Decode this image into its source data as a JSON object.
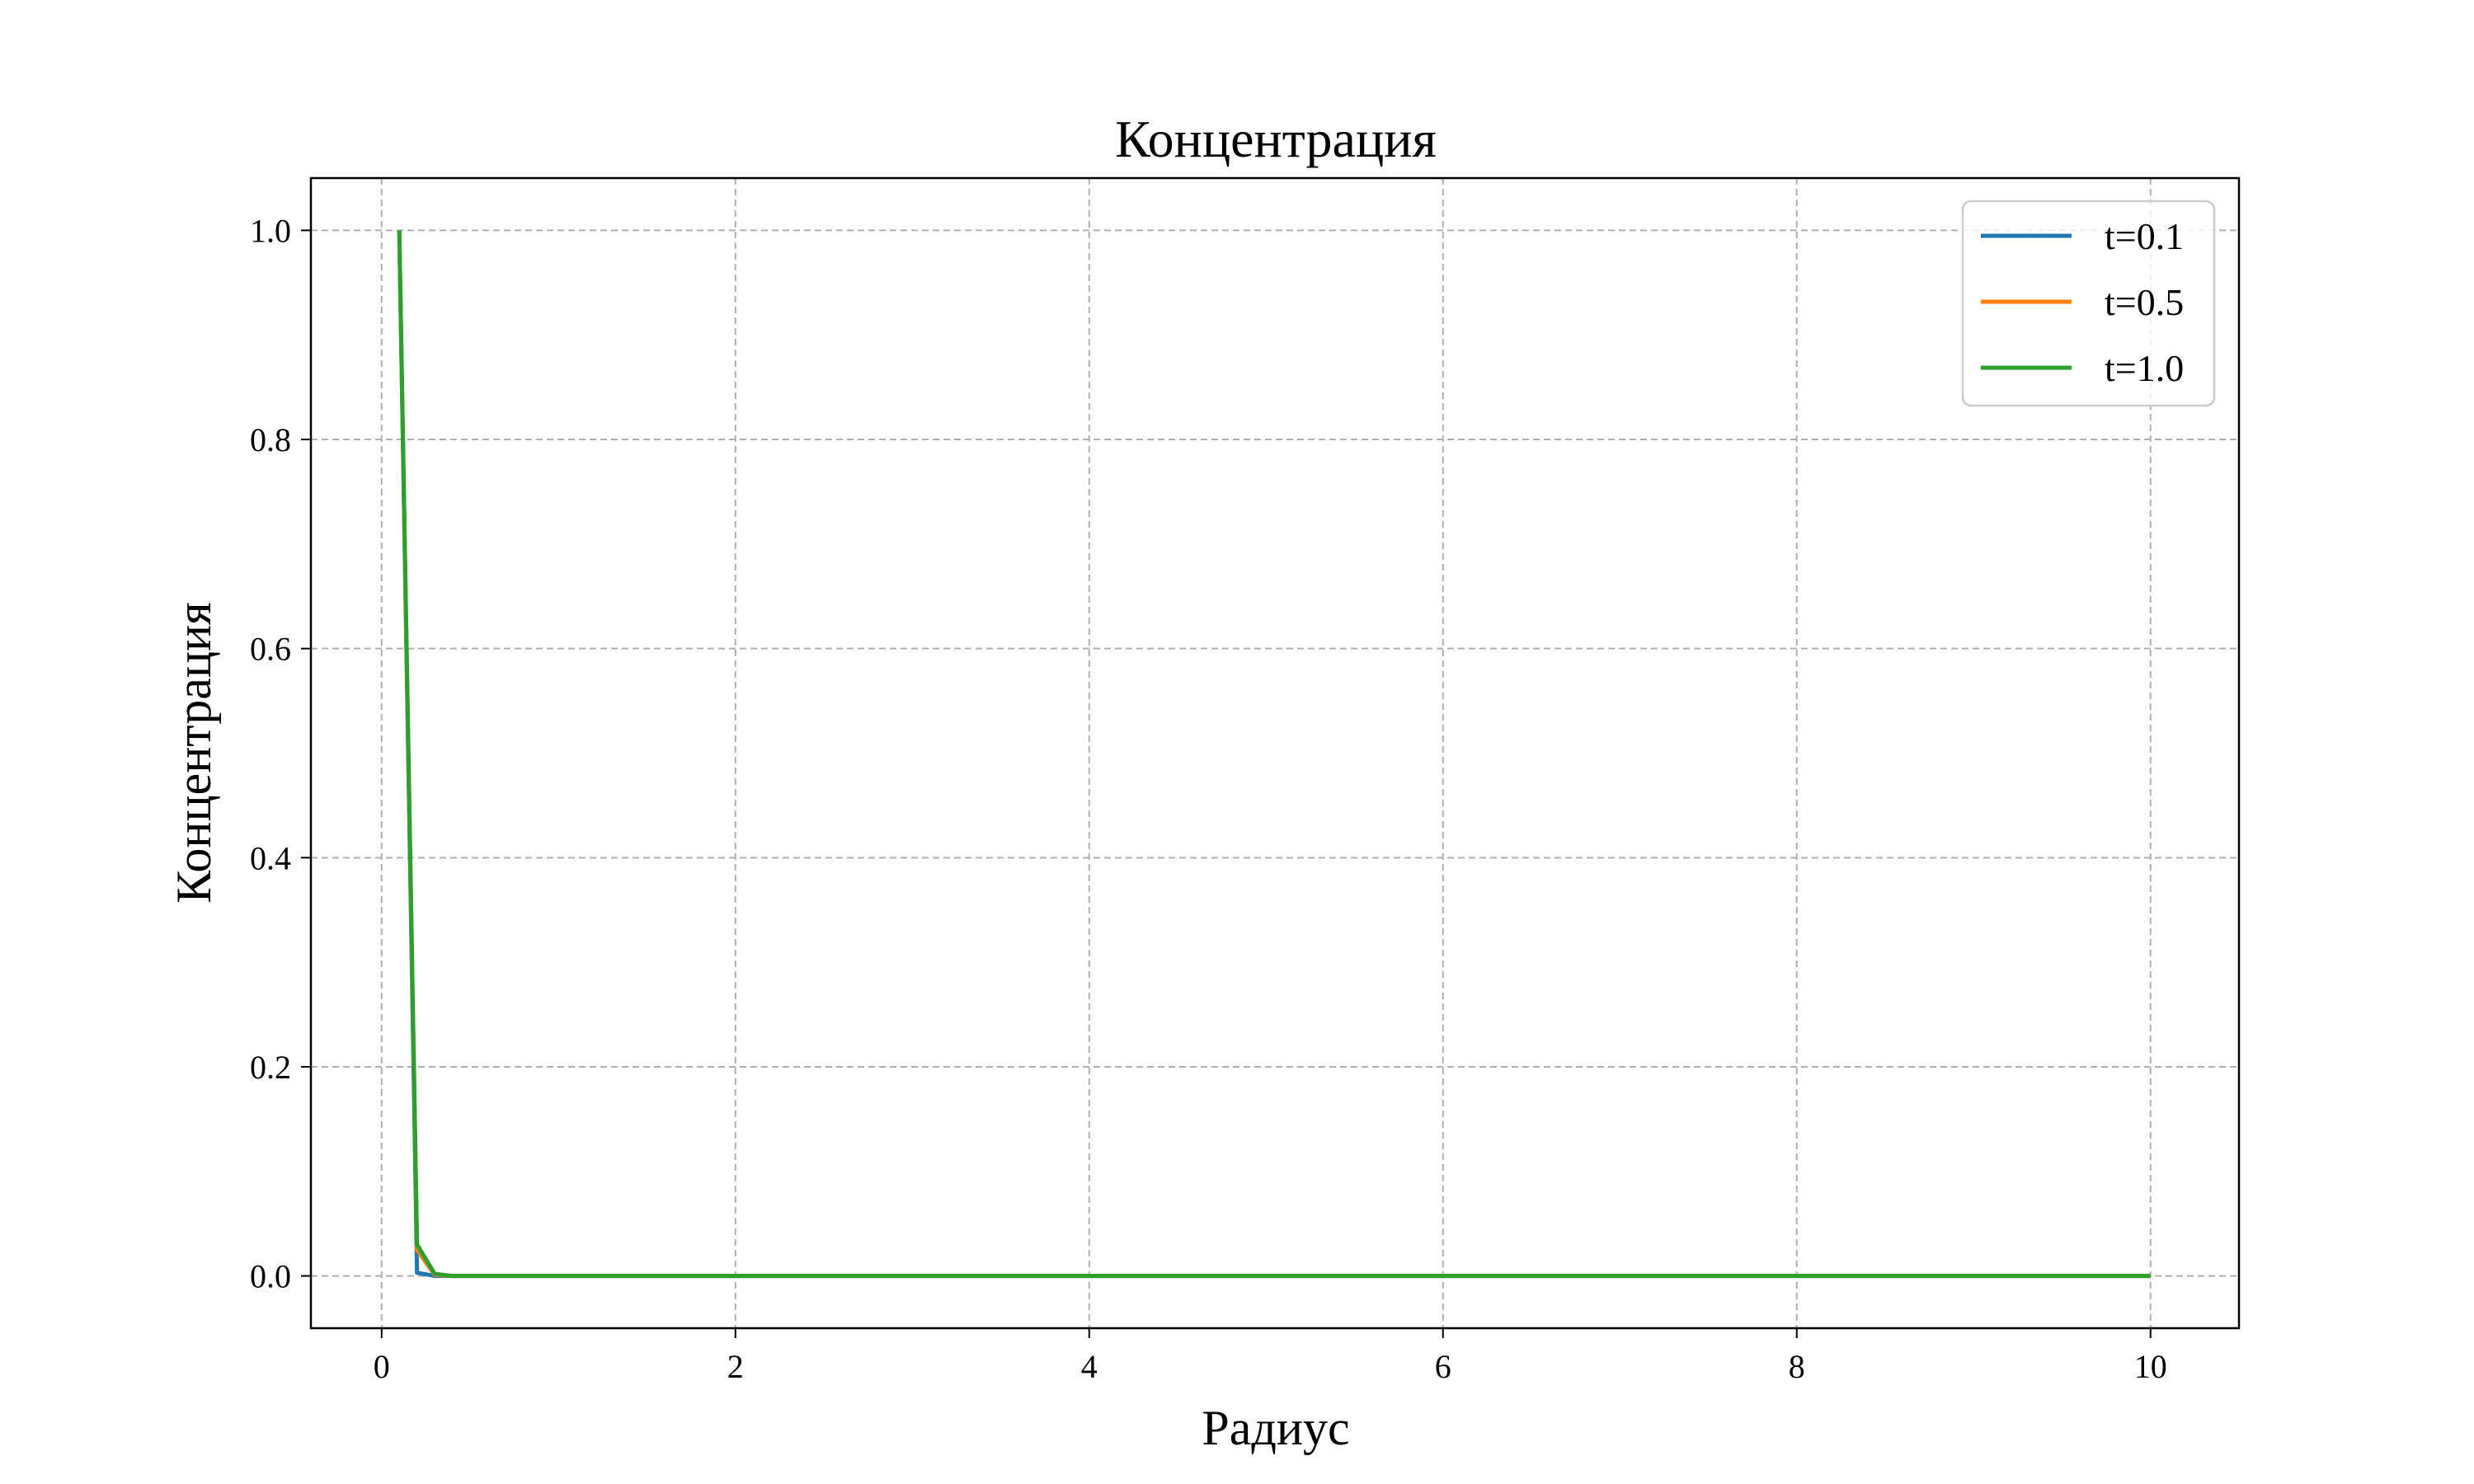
{
  "chart_data": {
    "type": "line",
    "title": "Концентрация",
    "xlabel": "Радиус",
    "ylabel": "Концентрация",
    "xlim": [
      -0.4,
      10.5
    ],
    "ylim": [
      -0.05,
      1.05
    ],
    "xticks": [
      0,
      2,
      4,
      6,
      8,
      10
    ],
    "xtick_labels": [
      "0",
      "2",
      "4",
      "6",
      "8",
      "10"
    ],
    "yticks": [
      0.0,
      0.2,
      0.4,
      0.6,
      0.8,
      1.0
    ],
    "ytick_labels": [
      "0.0",
      "0.2",
      "0.4",
      "0.6",
      "0.8",
      "1.0"
    ],
    "grid": true,
    "legend_position": "top-right",
    "series": [
      {
        "name": "t=0.1",
        "color": "#1f77b4",
        "x": [
          0.1,
          0.2,
          0.3,
          0.4,
          10.0
        ],
        "y": [
          1.0,
          0.003,
          0.0,
          0.0,
          0.0
        ]
      },
      {
        "name": "t=0.5",
        "color": "#ff7f0e",
        "x": [
          0.1,
          0.2,
          0.3,
          0.4,
          10.0
        ],
        "y": [
          1.0,
          0.025,
          0.001,
          0.0,
          0.0
        ]
      },
      {
        "name": "t=1.0",
        "color": "#2ca02c",
        "x": [
          0.1,
          0.2,
          0.3,
          0.4,
          10.0
        ],
        "y": [
          1.0,
          0.03,
          0.002,
          0.0,
          0.0
        ]
      }
    ]
  }
}
